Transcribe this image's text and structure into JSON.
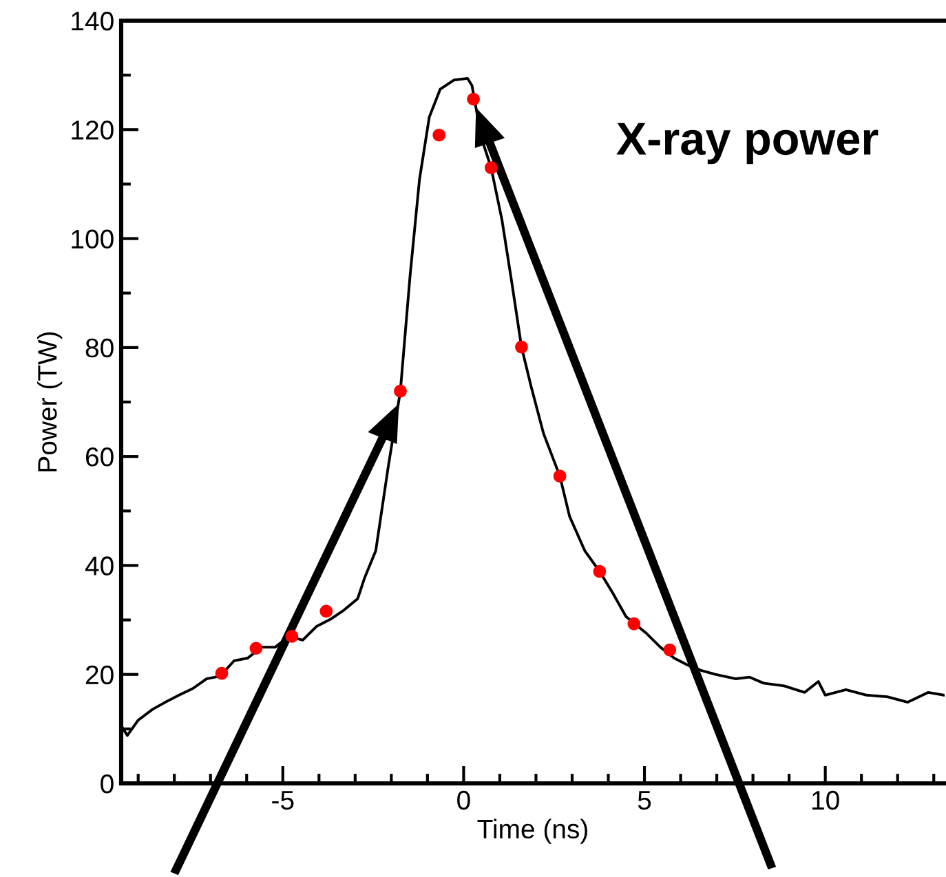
{
  "chart_data": {
    "type": "line",
    "xlabel": "Time (ns)",
    "ylabel": "Power (TW)",
    "annotations": [
      "X-ray power"
    ],
    "xlim": [
      -9.47,
      13.3
    ],
    "ylim": [
      0,
      140
    ],
    "xticks": [
      -5,
      0,
      5,
      10
    ],
    "yticks": [
      0,
      20,
      40,
      60,
      80,
      100,
      120,
      140
    ],
    "grid": false,
    "legend": false,
    "series": [
      {
        "color": "#000000",
        "marker": "none",
        "x": [
          -9.47,
          -9.3,
          -9.0,
          -8.6,
          -8.25,
          -7.87,
          -7.49,
          -7.11,
          -6.73,
          -6.35,
          -5.97,
          -5.59,
          -5.21,
          -4.83,
          -4.45,
          -4.07,
          -3.69,
          -3.31,
          -2.93,
          -2.74,
          -2.43,
          -2.09,
          -1.75,
          -1.48,
          -1.22,
          -0.95,
          -0.65,
          -0.27,
          0.11,
          0.23,
          0.49,
          0.76,
          1.06,
          1.33,
          1.6,
          1.86,
          2.21,
          2.66,
          2.93,
          3.35,
          3.76,
          4.11,
          4.49,
          5.06,
          5.44,
          5.82,
          6.2,
          6.58,
          6.96,
          7.53,
          7.91,
          8.29,
          8.86,
          9.43,
          9.81,
          10.0,
          10.57,
          11.14,
          11.71,
          12.28,
          12.85,
          13.27
        ],
        "values": [
          10.6,
          8.8,
          11.6,
          13.6,
          14.9,
          16.2,
          17.4,
          19.2,
          19.7,
          22.5,
          23.0,
          25.0,
          25.0,
          27.0,
          26.3,
          28.8,
          30.1,
          31.8,
          33.9,
          37.7,
          42.7,
          57.9,
          72.0,
          93.3,
          110.9,
          122.3,
          127.4,
          129.1,
          129.4,
          128.1,
          118.5,
          113.0,
          103.4,
          92.0,
          80.1,
          73.0,
          64.2,
          56.4,
          49.0,
          42.7,
          38.9,
          35.1,
          30.6,
          27.5,
          25.0,
          23.0,
          21.7,
          20.7,
          20.0,
          19.2,
          19.5,
          18.4,
          17.9,
          16.7,
          18.7,
          16.2,
          17.2,
          16.2,
          15.9,
          14.9,
          16.7,
          16.2
        ]
      },
      {
        "type": "scatter",
        "color": "#ff0000",
        "marker": "circle",
        "x": [
          -6.69,
          -5.74,
          -4.75,
          -3.8,
          -1.75,
          -0.68,
          0.27,
          0.76,
          1.6,
          2.66,
          3.76,
          4.71,
          5.7
        ],
        "values": [
          20.2,
          24.8,
          27.0,
          31.6,
          72.0,
          119.0,
          125.6,
          113.0,
          80.1,
          56.4,
          38.9,
          29.3,
          24.5
        ]
      }
    ]
  }
}
